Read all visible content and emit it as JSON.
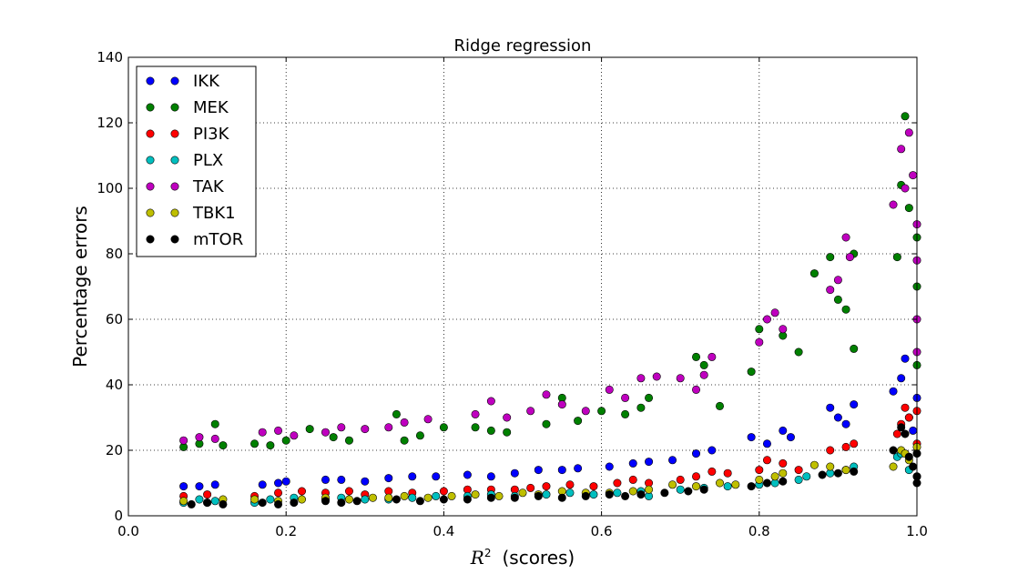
{
  "chart_data": {
    "type": "scatter",
    "title": "Ridge regression",
    "xlabel_math": "R",
    "xlabel_sup": "2",
    "xlabel_suffix": "(scores)",
    "ylabel": "Percentage errors",
    "xlim": [
      0.0,
      1.0
    ],
    "ylim": [
      0,
      140
    ],
    "xticks": [
      "0.0",
      "0.2",
      "0.4",
      "0.6",
      "0.8",
      "1.0"
    ],
    "yticks": [
      "0",
      "20",
      "40",
      "60",
      "80",
      "100",
      "120",
      "140"
    ],
    "grid": true,
    "legend_position": "top-left",
    "series": [
      {
        "name": "IKK",
        "color": "#0000ff",
        "points": [
          [
            0.07,
            9
          ],
          [
            0.09,
            9
          ],
          [
            0.11,
            9.5
          ],
          [
            0.17,
            9.5
          ],
          [
            0.19,
            10
          ],
          [
            0.2,
            10.5
          ],
          [
            0.25,
            11
          ],
          [
            0.27,
            11
          ],
          [
            0.3,
            10.5
          ],
          [
            0.33,
            11.5
          ],
          [
            0.36,
            12
          ],
          [
            0.39,
            12
          ],
          [
            0.43,
            12.5
          ],
          [
            0.46,
            12
          ],
          [
            0.49,
            13
          ],
          [
            0.52,
            14
          ],
          [
            0.55,
            14
          ],
          [
            0.57,
            14.5
          ],
          [
            0.61,
            15
          ],
          [
            0.64,
            16
          ],
          [
            0.66,
            16.5
          ],
          [
            0.69,
            17
          ],
          [
            0.72,
            19
          ],
          [
            0.74,
            20
          ],
          [
            0.79,
            24
          ],
          [
            0.81,
            22
          ],
          [
            0.83,
            26
          ],
          [
            0.84,
            24
          ],
          [
            0.89,
            33
          ],
          [
            0.9,
            30
          ],
          [
            0.92,
            34
          ],
          [
            0.91,
            28
          ],
          [
            0.97,
            38
          ],
          [
            0.98,
            42
          ],
          [
            0.985,
            48
          ],
          [
            0.99,
            30
          ],
          [
            0.995,
            26
          ],
          [
            1.0,
            36
          ]
        ]
      },
      {
        "name": "MEK",
        "color": "#008000",
        "points": [
          [
            0.07,
            21
          ],
          [
            0.09,
            22
          ],
          [
            0.11,
            28
          ],
          [
            0.12,
            21.5
          ],
          [
            0.16,
            22
          ],
          [
            0.18,
            21.5
          ],
          [
            0.2,
            23
          ],
          [
            0.23,
            26.5
          ],
          [
            0.26,
            24
          ],
          [
            0.28,
            23
          ],
          [
            0.34,
            31
          ],
          [
            0.35,
            23
          ],
          [
            0.37,
            24.5
          ],
          [
            0.4,
            27
          ],
          [
            0.44,
            27
          ],
          [
            0.46,
            26
          ],
          [
            0.48,
            25.5
          ],
          [
            0.53,
            28
          ],
          [
            0.55,
            36
          ],
          [
            0.57,
            29
          ],
          [
            0.6,
            32
          ],
          [
            0.63,
            31
          ],
          [
            0.65,
            33
          ],
          [
            0.66,
            36
          ],
          [
            0.72,
            48.5
          ],
          [
            0.73,
            46
          ],
          [
            0.75,
            33.5
          ],
          [
            0.79,
            44
          ],
          [
            0.8,
            57
          ],
          [
            0.83,
            55
          ],
          [
            0.85,
            50
          ],
          [
            0.87,
            74
          ],
          [
            0.89,
            79
          ],
          [
            0.9,
            66
          ],
          [
            0.91,
            63
          ],
          [
            0.92,
            80
          ],
          [
            0.92,
            51
          ],
          [
            0.975,
            79
          ],
          [
            0.98,
            101
          ],
          [
            0.985,
            122
          ],
          [
            0.99,
            94
          ],
          [
            1.0,
            85
          ],
          [
            1.0,
            70
          ],
          [
            1.0,
            46
          ]
        ]
      },
      {
        "name": "PI3K",
        "color": "#ff0000",
        "points": [
          [
            0.07,
            6
          ],
          [
            0.1,
            6.5
          ],
          [
            0.16,
            6
          ],
          [
            0.19,
            7
          ],
          [
            0.22,
            7.5
          ],
          [
            0.25,
            7
          ],
          [
            0.28,
            7.5
          ],
          [
            0.3,
            6.5
          ],
          [
            0.33,
            7.5
          ],
          [
            0.36,
            7
          ],
          [
            0.4,
            7.5
          ],
          [
            0.43,
            8
          ],
          [
            0.46,
            8
          ],
          [
            0.49,
            8
          ],
          [
            0.51,
            8.5
          ],
          [
            0.53,
            9
          ],
          [
            0.56,
            9.5
          ],
          [
            0.59,
            9
          ],
          [
            0.62,
            10
          ],
          [
            0.64,
            11
          ],
          [
            0.66,
            10
          ],
          [
            0.7,
            11
          ],
          [
            0.72,
            12
          ],
          [
            0.74,
            13.5
          ],
          [
            0.76,
            13
          ],
          [
            0.8,
            14
          ],
          [
            0.81,
            17
          ],
          [
            0.83,
            16
          ],
          [
            0.85,
            14
          ],
          [
            0.89,
            20
          ],
          [
            0.91,
            21
          ],
          [
            0.92,
            22
          ],
          [
            0.975,
            25
          ],
          [
            0.98,
            28
          ],
          [
            0.985,
            33
          ],
          [
            0.99,
            30
          ],
          [
            1.0,
            22
          ],
          [
            1.0,
            32
          ]
        ]
      },
      {
        "name": "PLX",
        "color": "#00bfbf",
        "points": [
          [
            0.07,
            4
          ],
          [
            0.09,
            5
          ],
          [
            0.11,
            4.5
          ],
          [
            0.16,
            4
          ],
          [
            0.18,
            5
          ],
          [
            0.21,
            5.5
          ],
          [
            0.25,
            5
          ],
          [
            0.27,
            5.5
          ],
          [
            0.3,
            5
          ],
          [
            0.33,
            5
          ],
          [
            0.36,
            5.5
          ],
          [
            0.39,
            6
          ],
          [
            0.43,
            6
          ],
          [
            0.46,
            6.5
          ],
          [
            0.49,
            6
          ],
          [
            0.53,
            6.5
          ],
          [
            0.56,
            7
          ],
          [
            0.59,
            6.5
          ],
          [
            0.62,
            7
          ],
          [
            0.65,
            7.5
          ],
          [
            0.66,
            6
          ],
          [
            0.7,
            8
          ],
          [
            0.73,
            8.5
          ],
          [
            0.76,
            9
          ],
          [
            0.8,
            9.5
          ],
          [
            0.82,
            10
          ],
          [
            0.85,
            11
          ],
          [
            0.86,
            12
          ],
          [
            0.89,
            13
          ],
          [
            0.91,
            14
          ],
          [
            0.92,
            15
          ],
          [
            0.975,
            18
          ],
          [
            0.98,
            19
          ],
          [
            0.99,
            14
          ],
          [
            1.0,
            12
          ]
        ]
      },
      {
        "name": "TAK",
        "color": "#bf00bf",
        "points": [
          [
            0.07,
            23
          ],
          [
            0.09,
            24
          ],
          [
            0.11,
            23.5
          ],
          [
            0.17,
            25.5
          ],
          [
            0.19,
            26
          ],
          [
            0.21,
            24.5
          ],
          [
            0.25,
            25.5
          ],
          [
            0.27,
            27
          ],
          [
            0.3,
            26.5
          ],
          [
            0.33,
            27
          ],
          [
            0.35,
            28.5
          ],
          [
            0.38,
            29.5
          ],
          [
            0.44,
            31
          ],
          [
            0.46,
            35
          ],
          [
            0.48,
            30
          ],
          [
            0.51,
            32
          ],
          [
            0.53,
            37
          ],
          [
            0.55,
            34
          ],
          [
            0.58,
            32
          ],
          [
            0.61,
            38.5
          ],
          [
            0.63,
            36
          ],
          [
            0.65,
            42
          ],
          [
            0.67,
            42.5
          ],
          [
            0.7,
            42
          ],
          [
            0.72,
            38.5
          ],
          [
            0.73,
            43
          ],
          [
            0.74,
            48.5
          ],
          [
            0.8,
            53
          ],
          [
            0.81,
            60
          ],
          [
            0.82,
            62
          ],
          [
            0.83,
            57
          ],
          [
            0.89,
            69
          ],
          [
            0.9,
            72
          ],
          [
            0.91,
            85
          ],
          [
            0.915,
            79
          ],
          [
            0.97,
            95
          ],
          [
            0.98,
            112
          ],
          [
            0.985,
            100
          ],
          [
            0.99,
            117
          ],
          [
            0.995,
            104
          ],
          [
            1.0,
            89
          ],
          [
            1.0,
            78
          ],
          [
            1.0,
            60
          ],
          [
            1.0,
            50
          ]
        ]
      },
      {
        "name": "TBK1",
        "color": "#bfbf00",
        "points": [
          [
            0.07,
            4.5
          ],
          [
            0.1,
            4
          ],
          [
            0.12,
            5
          ],
          [
            0.16,
            5
          ],
          [
            0.19,
            4.5
          ],
          [
            0.22,
            5
          ],
          [
            0.25,
            5.5
          ],
          [
            0.28,
            5
          ],
          [
            0.31,
            5.5
          ],
          [
            0.33,
            5.5
          ],
          [
            0.35,
            6
          ],
          [
            0.38,
            5.5
          ],
          [
            0.41,
            6
          ],
          [
            0.44,
            6.5
          ],
          [
            0.47,
            6
          ],
          [
            0.5,
            7
          ],
          [
            0.52,
            6.5
          ],
          [
            0.55,
            7.5
          ],
          [
            0.58,
            7
          ],
          [
            0.61,
            7
          ],
          [
            0.64,
            7.5
          ],
          [
            0.66,
            8
          ],
          [
            0.69,
            9.5
          ],
          [
            0.72,
            9
          ],
          [
            0.75,
            10
          ],
          [
            0.77,
            9.5
          ],
          [
            0.8,
            11
          ],
          [
            0.82,
            12
          ],
          [
            0.83,
            13
          ],
          [
            0.87,
            15.5
          ],
          [
            0.89,
            15
          ],
          [
            0.91,
            14
          ],
          [
            0.97,
            15
          ],
          [
            0.98,
            20
          ],
          [
            0.985,
            19
          ],
          [
            0.99,
            17
          ],
          [
            1.0,
            21
          ]
        ]
      },
      {
        "name": "mTOR",
        "color": "#000000",
        "points": [
          [
            0.08,
            3.5
          ],
          [
            0.1,
            4
          ],
          [
            0.12,
            3.5
          ],
          [
            0.17,
            4
          ],
          [
            0.19,
            3.5
          ],
          [
            0.21,
            4
          ],
          [
            0.25,
            4.5
          ],
          [
            0.27,
            4
          ],
          [
            0.29,
            4.5
          ],
          [
            0.34,
            5
          ],
          [
            0.37,
            4.5
          ],
          [
            0.4,
            5
          ],
          [
            0.43,
            5
          ],
          [
            0.46,
            5.5
          ],
          [
            0.49,
            5.5
          ],
          [
            0.52,
            6
          ],
          [
            0.55,
            5.5
          ],
          [
            0.58,
            6
          ],
          [
            0.61,
            6.5
          ],
          [
            0.63,
            6
          ],
          [
            0.65,
            6.5
          ],
          [
            0.68,
            7
          ],
          [
            0.71,
            7.5
          ],
          [
            0.73,
            8
          ],
          [
            0.79,
            9
          ],
          [
            0.81,
            10
          ],
          [
            0.83,
            10.5
          ],
          [
            0.88,
            12.5
          ],
          [
            0.9,
            13
          ],
          [
            0.92,
            13.5
          ],
          [
            0.97,
            20
          ],
          [
            0.98,
            27
          ],
          [
            0.985,
            25
          ],
          [
            0.99,
            18
          ],
          [
            0.995,
            15
          ],
          [
            1.0,
            12
          ],
          [
            1.0,
            19
          ],
          [
            1.0,
            10
          ]
        ]
      }
    ]
  }
}
